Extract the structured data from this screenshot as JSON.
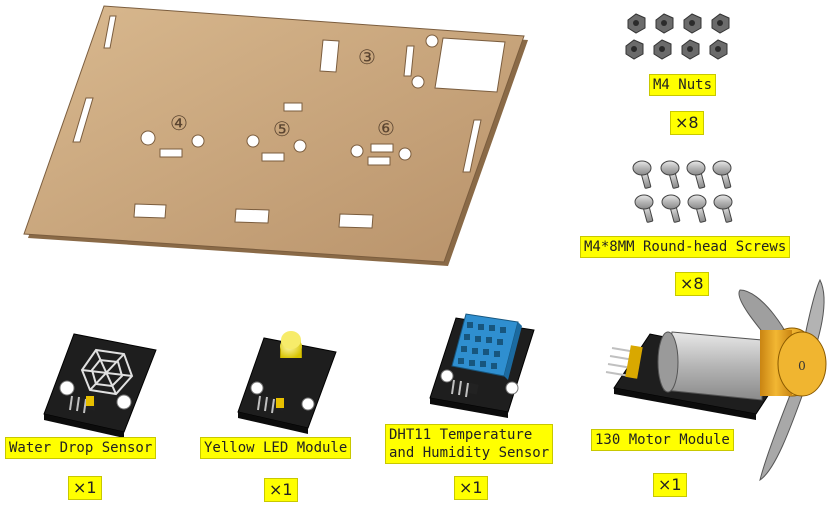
{
  "items": [
    {
      "name": "M4 Nuts",
      "qty": "×8"
    },
    {
      "name": "M4*8MM Round-head Screws",
      "qty": "×8"
    },
    {
      "name": "Water Drop Sensor",
      "qty": "×1"
    },
    {
      "name": "Yellow LED Module",
      "qty": "×1"
    },
    {
      "name": "DHT11 Temperature",
      "name2": "and Humidity Sensor",
      "qty": "×1"
    },
    {
      "name": "130 Motor Module",
      "qty": "×1"
    }
  ],
  "board": {
    "markings": [
      "③",
      "④",
      "⑤",
      "⑥"
    ]
  },
  "motor": {
    "marking": "0"
  },
  "colors": {
    "label_bg": "#ffff00",
    "wood": "#c9a57a",
    "pcb": "#1e1e1e",
    "dht_blue": "#2f8fd0",
    "motor_cap": "#e8a21c"
  }
}
